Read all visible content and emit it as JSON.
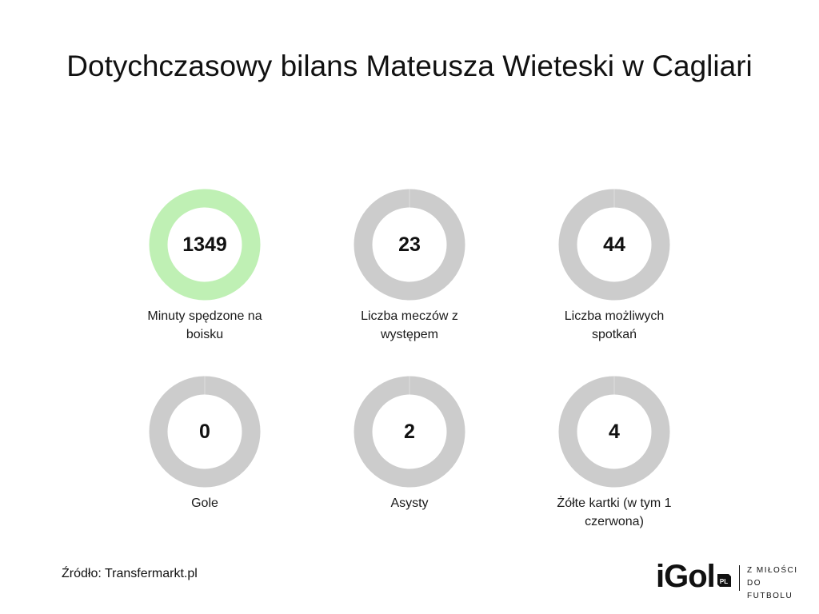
{
  "title": "Dotychczasowy bilans Mateusza Wieteski w Cagliari",
  "colors": {
    "ring_active": "#bff0b4",
    "ring_default": "#cccccc",
    "ring_seam": "#dedede"
  },
  "stats": [
    {
      "value": "1349",
      "label": "Minuty spędzone na boisku",
      "highlight": true
    },
    {
      "value": "23",
      "label": "Liczba meczów z występem",
      "highlight": false
    },
    {
      "value": "44",
      "label": "Liczba możliwych spotkań",
      "highlight": false
    },
    {
      "value": "0",
      "label": "Gole",
      "highlight": false
    },
    {
      "value": "2",
      "label": "Asysty",
      "highlight": false
    },
    {
      "value": "4",
      "label": "Żółte kartki (w tym 1 czerwona)",
      "highlight": false
    }
  ],
  "source": "Źródło: Transfermarkt.pl",
  "brand": {
    "logo": "iGol",
    "badge": "PL",
    "tagline_line1": "Z MIŁOŚCI",
    "tagline_line2": "DO FUTBOLU"
  }
}
